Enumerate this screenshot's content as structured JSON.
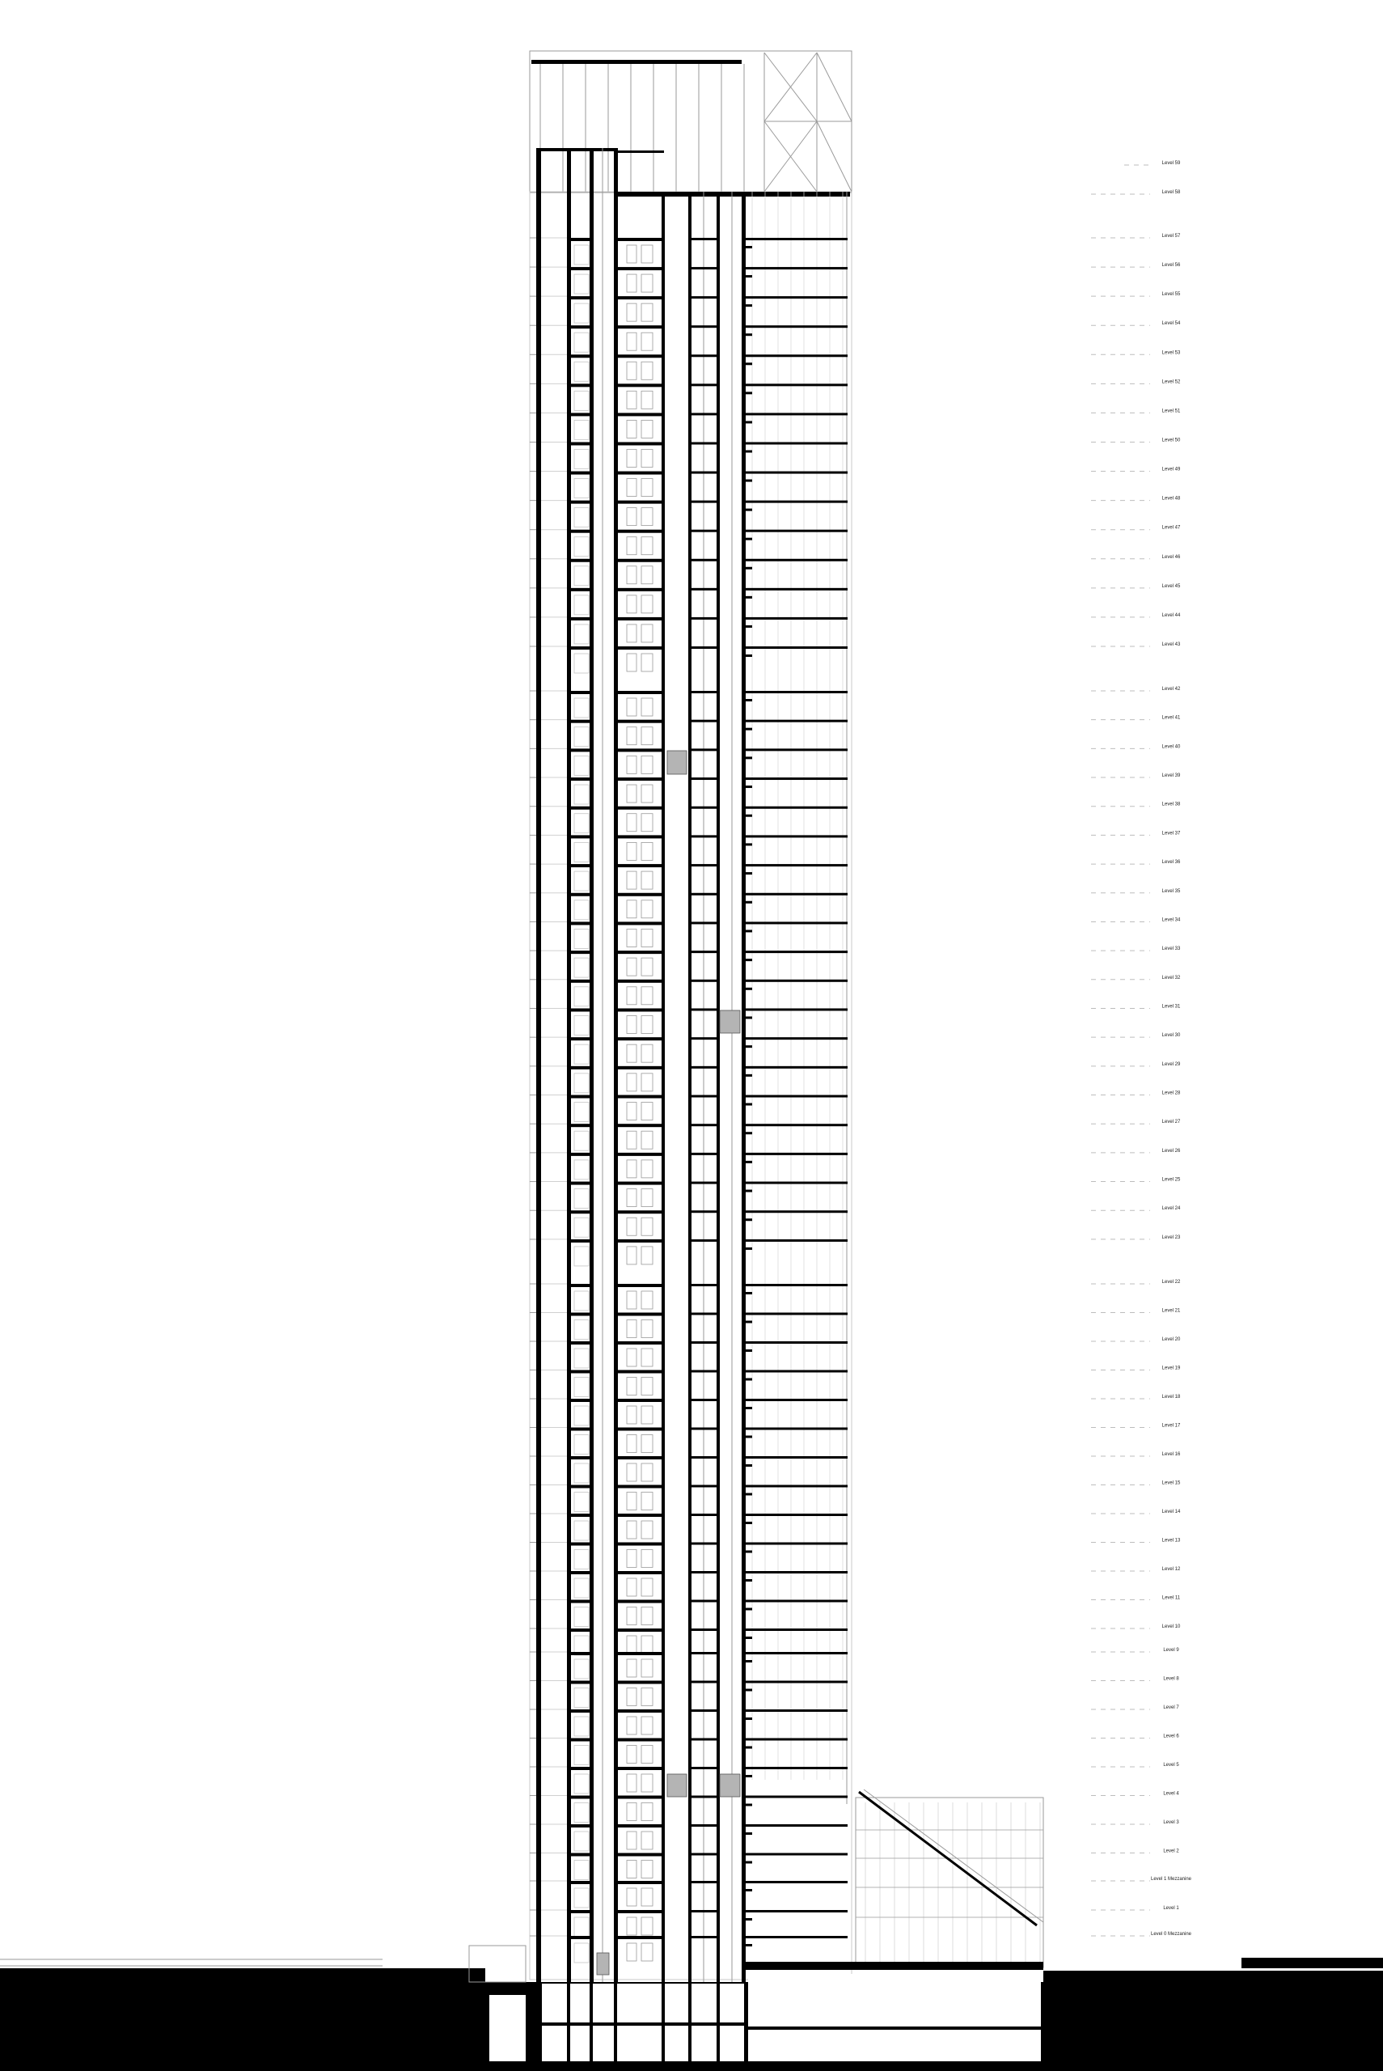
{
  "drawing": {
    "type": "building-section",
    "colors": {
      "cut": "#000000",
      "line": "#9a9a9a",
      "fill_gray": "#b4b4b4",
      "level_line": "#bdbdbd"
    }
  },
  "levels": [
    "Level 59",
    "Level 58",
    "Level 57",
    "Level 56",
    "Level 55",
    "Level 54",
    "Level 53",
    "Level 52",
    "Level 51",
    "Level 50",
    "Level 49",
    "Level 48",
    "Level 47",
    "Level 46",
    "Level 45",
    "Level 44",
    "Level 43",
    "Level 42",
    "Level 41",
    "Level 40",
    "Level 39",
    "Level 38",
    "Level 37",
    "Level 36",
    "Level 35",
    "Level 34",
    "Level 33",
    "Level 32",
    "Level 31",
    "Level 30",
    "Level 29",
    "Level 28",
    "Level 27",
    "Level 26",
    "Level 25",
    "Level 24",
    "Level 23",
    "Level 22",
    "Level 21",
    "Level 20",
    "Level 19",
    "Level 18",
    "Level 17",
    "Level 16",
    "Level 15",
    "Level 14",
    "Level 13",
    "Level 12",
    "Level 11",
    "Level 10",
    "Level 9",
    "Level 8",
    "Level 7",
    "Level 6",
    "Level 5",
    "Level 4",
    "Level 3",
    "Level 2",
    "Level 1 Mezzanine",
    "Level 1",
    "Level 0 Mezzanine"
  ]
}
